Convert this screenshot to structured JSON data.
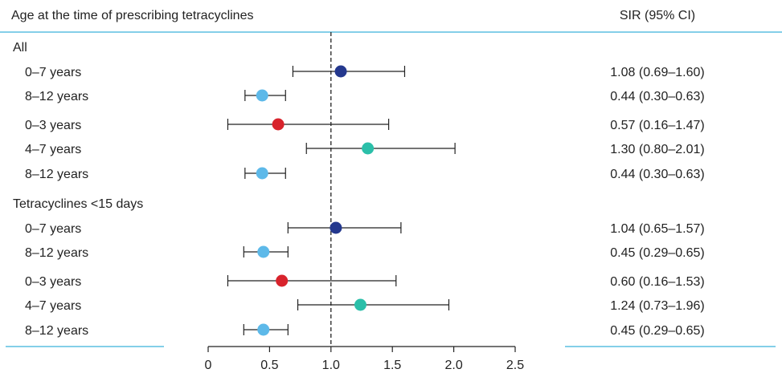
{
  "chart_data": {
    "type": "forest",
    "header": {
      "left": "Age at the time of prescribing tetracyclines",
      "right": "SIR (95% CI)"
    },
    "reference_line": 1.0,
    "xlim": [
      0,
      2.5
    ],
    "xticks": [
      0,
      0.5,
      1.0,
      1.5,
      2.0,
      2.5
    ],
    "xtick_labels": [
      "0",
      "0.5",
      "1.0",
      "1.5",
      "2.0",
      "2.5"
    ],
    "colors": {
      "0-7": "#24388e",
      "8-12": "#5db9e9",
      "0-3": "#d8232c",
      "4-7": "#2bbfa9",
      "rule": "#5bbfe0"
    },
    "rows": [
      {
        "type": "header",
        "label": "All"
      },
      {
        "label": "0–7 years",
        "group": "0-7",
        "estimate": 1.08,
        "lower": 0.69,
        "upper": 1.6,
        "ci_text": "1.08 (0.69–1.60)"
      },
      {
        "label": "8–12 years",
        "group": "8-12",
        "estimate": 0.44,
        "lower": 0.3,
        "upper": 0.63,
        "ci_text": "0.44 (0.30–0.63)"
      },
      {
        "label": "0–3 years",
        "group": "0-3",
        "estimate": 0.57,
        "lower": 0.16,
        "upper": 1.47,
        "ci_text": "0.57 (0.16–1.47)"
      },
      {
        "label": "4–7 years",
        "group": "4-7",
        "estimate": 1.3,
        "lower": 0.8,
        "upper": 2.01,
        "ci_text": "1.30 (0.80–2.01)"
      },
      {
        "label": "8–12 years",
        "group": "8-12",
        "estimate": 0.44,
        "lower": 0.3,
        "upper": 0.63,
        "ci_text": "0.44 (0.30–0.63)"
      },
      {
        "type": "header",
        "label": "Tetracyclines <15 days"
      },
      {
        "label": "0–7 years",
        "group": "0-7",
        "estimate": 1.04,
        "lower": 0.65,
        "upper": 1.57,
        "ci_text": "1.04 (0.65–1.57)"
      },
      {
        "label": "8–12 years",
        "group": "8-12",
        "estimate": 0.45,
        "lower": 0.29,
        "upper": 0.65,
        "ci_text": "0.45 (0.29–0.65)"
      },
      {
        "label": "0–3 years",
        "group": "0-3",
        "estimate": 0.6,
        "lower": 0.16,
        "upper": 1.53,
        "ci_text": "0.60 (0.16–1.53)"
      },
      {
        "label": "4–7 years",
        "group": "4-7",
        "estimate": 1.24,
        "lower": 0.73,
        "upper": 1.96,
        "ci_text": "1.24 (0.73–1.96)"
      },
      {
        "label": "8–12 years",
        "group": "8-12",
        "estimate": 0.45,
        "lower": 0.29,
        "upper": 0.65,
        "ci_text": "0.45 (0.29–0.65)"
      }
    ]
  }
}
